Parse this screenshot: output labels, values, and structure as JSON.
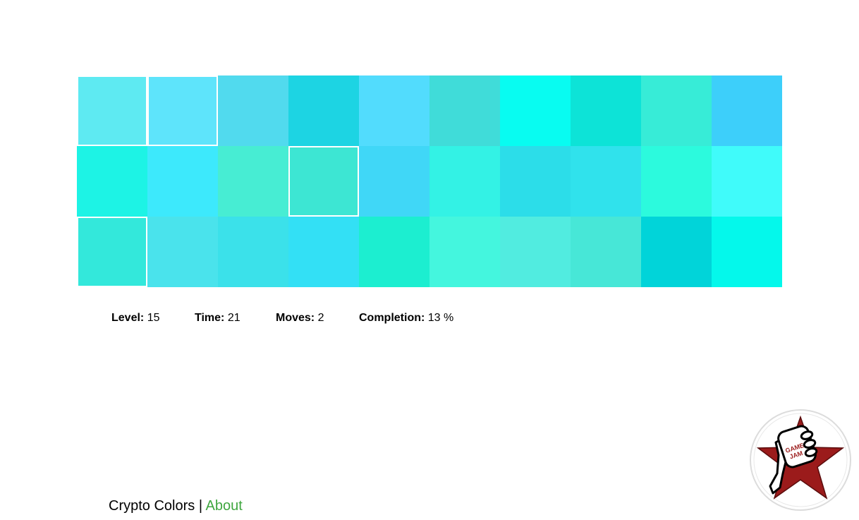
{
  "board": {
    "columns": 10,
    "rows": 3,
    "tiles": [
      {
        "color": "#5eeaf2",
        "selected": true
      },
      {
        "color": "#5ee4fb",
        "selected": true
      },
      {
        "color": "#51daee",
        "selected": false
      },
      {
        "color": "#1dd4e3",
        "selected": false
      },
      {
        "color": "#52dcfd",
        "selected": false
      },
      {
        "color": "#40dcd9",
        "selected": false
      },
      {
        "color": "#08fcf1",
        "selected": false
      },
      {
        "color": "#0de3d7",
        "selected": false
      },
      {
        "color": "#37ecd7",
        "selected": false
      },
      {
        "color": "#3dcffa",
        "selected": false
      },
      {
        "color": "#1df3e5",
        "selected": false
      },
      {
        "color": "#3de9fc",
        "selected": false
      },
      {
        "color": "#47edd3",
        "selected": false
      },
      {
        "color": "#3de6d3",
        "selected": true
      },
      {
        "color": "#40d7f7",
        "selected": false
      },
      {
        "color": "#33f2e5",
        "selected": false
      },
      {
        "color": "#2cdde9",
        "selected": false
      },
      {
        "color": "#30e2ec",
        "selected": false
      },
      {
        "color": "#2cfadd",
        "selected": false
      },
      {
        "color": "#40fbfa",
        "selected": false
      },
      {
        "color": "#33e8db",
        "selected": true
      },
      {
        "color": "#4ae3ec",
        "selected": false
      },
      {
        "color": "#3be1ea",
        "selected": false
      },
      {
        "color": "#33e0f5",
        "selected": false
      },
      {
        "color": "#1ceed0",
        "selected": false
      },
      {
        "color": "#44f6de",
        "selected": false
      },
      {
        "color": "#51ece0",
        "selected": false
      },
      {
        "color": "#47e7d7",
        "selected": false
      },
      {
        "color": "#01d4d9",
        "selected": false
      },
      {
        "color": "#04f8eb",
        "selected": false
      }
    ]
  },
  "stats": {
    "level_label": "Level:",
    "level_value": "15",
    "time_label": "Time:",
    "time_value": "21",
    "moves_label": "Moves:",
    "moves_value": "2",
    "completion_label": "Completion:",
    "completion_value": "13 %"
  },
  "footer": {
    "title": "Crypto Colors",
    "separator": "|",
    "about_link": "About"
  },
  "badge": {
    "icon": "game-jam-badge-icon",
    "text": "GAME JAM",
    "colors": {
      "star": "#9b1b1b",
      "ring": "#dcdcdc"
    }
  },
  "colors": {
    "selected_border": "#ffffff",
    "about_link": "#3fa63f"
  }
}
